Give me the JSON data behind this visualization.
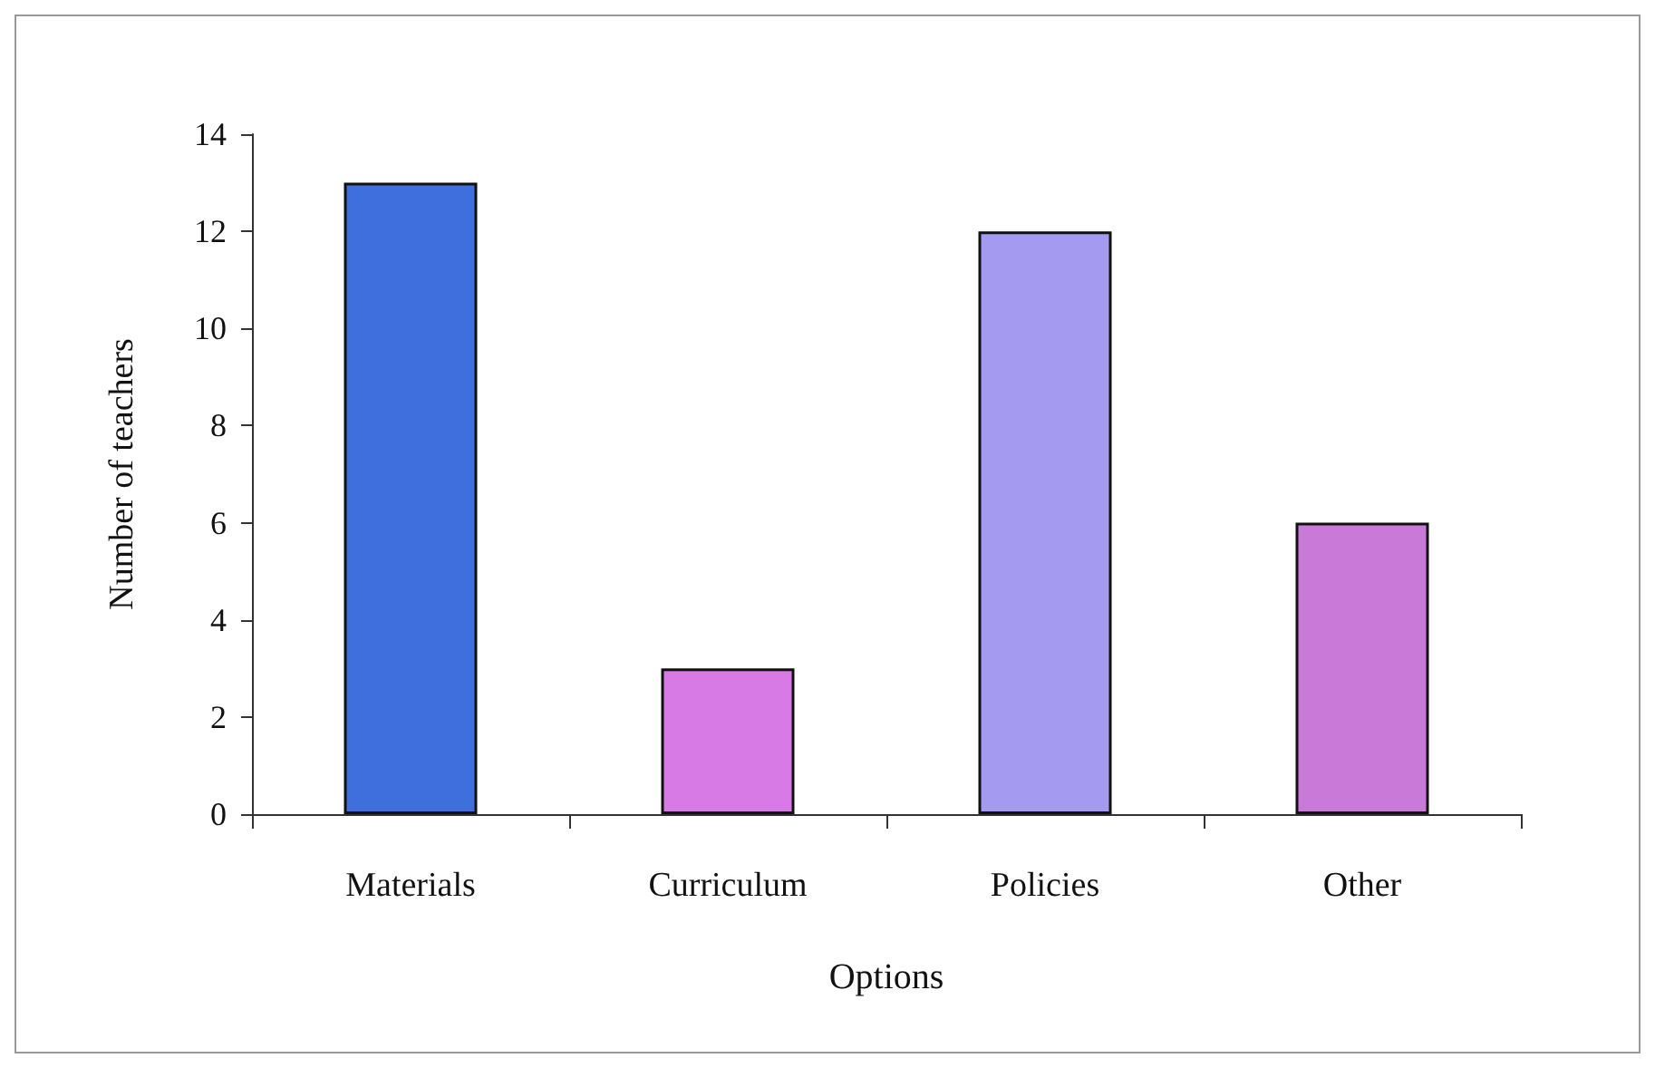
{
  "chart_data": {
    "type": "bar",
    "xlabel": "Options",
    "ylabel": "Number of teachers",
    "categories": [
      "Materials",
      "Curriculum",
      "Policies",
      "Other"
    ],
    "values": [
      13,
      3,
      12,
      6
    ],
    "colors": [
      "#3f6fdc",
      "#d77ae6",
      "#a49af0",
      "#c97ad8"
    ],
    "ylim": [
      0,
      14
    ],
    "yticks": [
      0,
      2,
      4,
      6,
      8,
      10,
      12,
      14
    ],
    "grid": false
  }
}
